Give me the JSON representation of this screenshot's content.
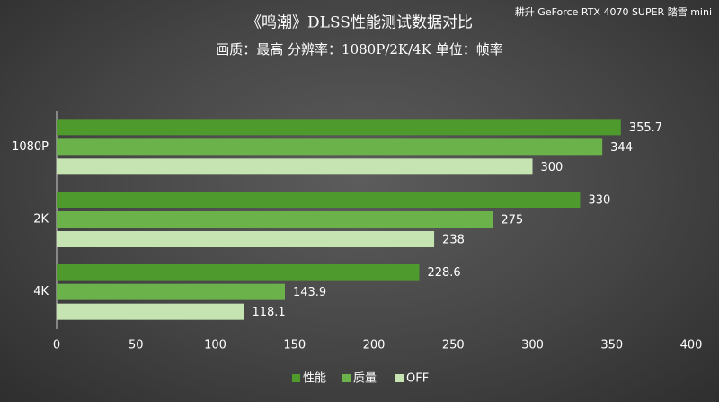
{
  "chart_data": {
    "type": "bar",
    "orientation": "horizontal",
    "title": "《鸣潮》DLSS性能测试数据对比",
    "subtitle": "画质：最高 分辨率：1080P/2K/4K 单位：帧率",
    "annotation": "耕升 GeForce RTX 4070  SUPER 踏雪 mini",
    "categories": [
      "1080P",
      "2K",
      "4K"
    ],
    "series": [
      {
        "name": "性能",
        "color": "#4e9a2c",
        "values": [
          355.7,
          330,
          228.6
        ]
      },
      {
        "name": "质量",
        "color": "#6cb24a",
        "values": [
          344,
          275,
          143.9
        ]
      },
      {
        "name": "OFF",
        "color": "#c6e4b2",
        "values": [
          300,
          238,
          118.1
        ]
      }
    ],
    "xlim": [
      0,
      400
    ],
    "xticks": [
      0,
      50,
      100,
      150,
      200,
      250,
      300,
      350,
      400
    ],
    "grid": false
  }
}
